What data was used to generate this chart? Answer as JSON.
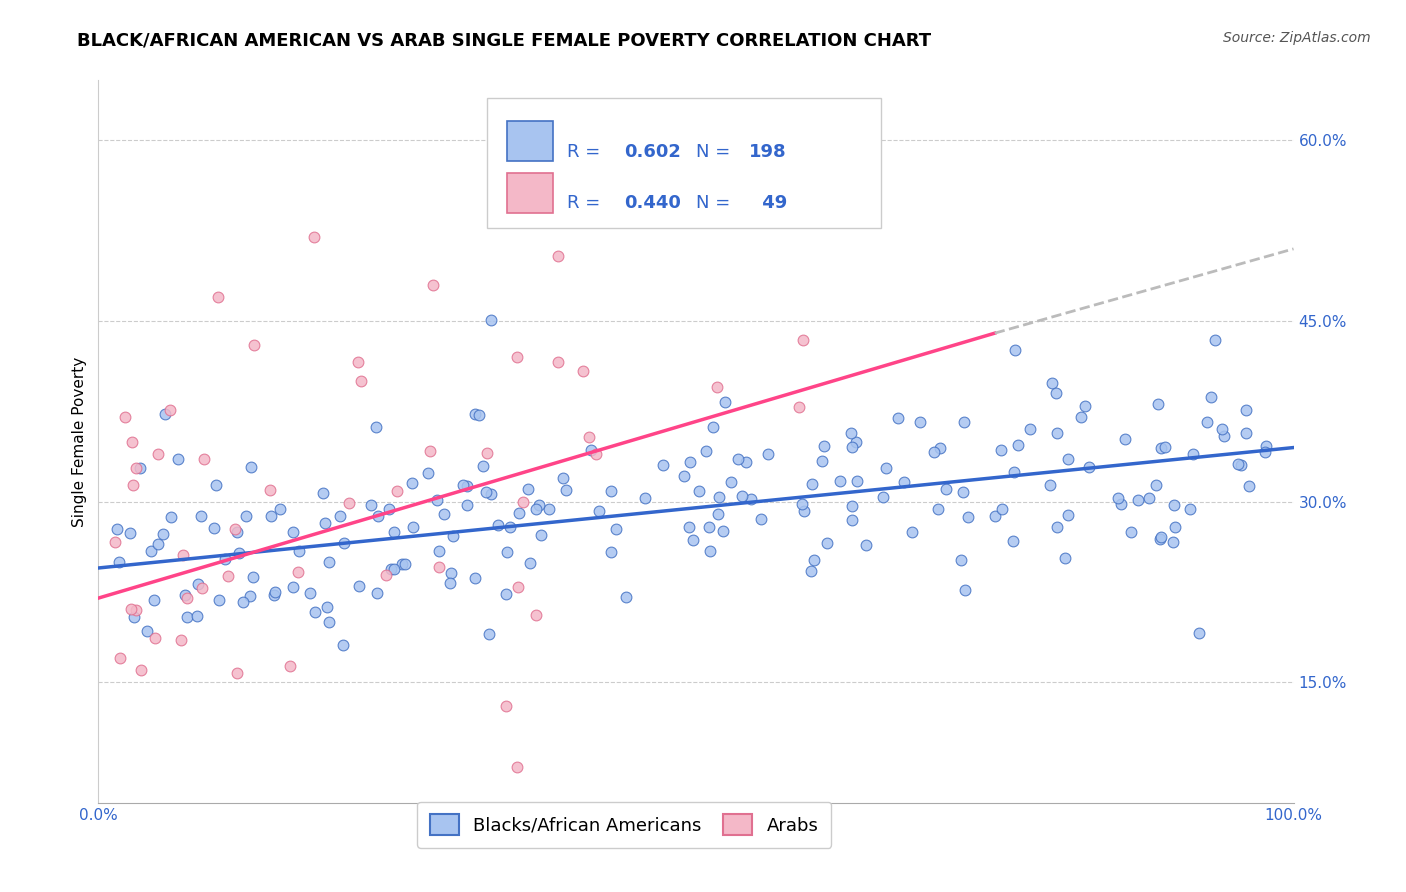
{
  "title": "BLACK/AFRICAN AMERICAN VS ARAB SINGLE FEMALE POVERTY CORRELATION CHART",
  "source": "Source: ZipAtlas.com",
  "ylabel": "Single Female Poverty",
  "xlabel": "",
  "xlim": [
    0,
    100
  ],
  "ylim": [
    5,
    65
  ],
  "ytick_labels": [
    "15.0%",
    "30.0%",
    "45.0%",
    "60.0%"
  ],
  "ytick_values": [
    15,
    30,
    45,
    60
  ],
  "xtick_labels": [
    "0.0%",
    "100.0%"
  ],
  "xtick_values": [
    0,
    100
  ],
  "legend_label_blue": "Blacks/African Americans",
  "legend_label_pink": "Arabs",
  "blue_fill_color": "#A8C4F0",
  "blue_edge_color": "#4472C4",
  "pink_fill_color": "#F4B8C8",
  "pink_edge_color": "#E07090",
  "blue_trend_color": "#3366CC",
  "pink_trend_color": "#FF4488",
  "dashed_color": "#BBBBBB",
  "legend_text_color": "#3366CC",
  "title_fontsize": 13,
  "source_fontsize": 10,
  "axis_label_fontsize": 11,
  "tick_fontsize": 11,
  "legend_fontsize": 13,
  "blue_trend_x0": 0,
  "blue_trend_y0": 24.5,
  "blue_trend_x1": 100,
  "blue_trend_y1": 34.5,
  "pink_trend_x0": 0,
  "pink_trend_y0": 22.0,
  "pink_trend_x1": 75,
  "pink_trend_y1": 44.0,
  "dashed_trend_x0": 75,
  "dashed_trend_y0": 44.0,
  "dashed_trend_x1": 100,
  "dashed_trend_y1": 51.0
}
